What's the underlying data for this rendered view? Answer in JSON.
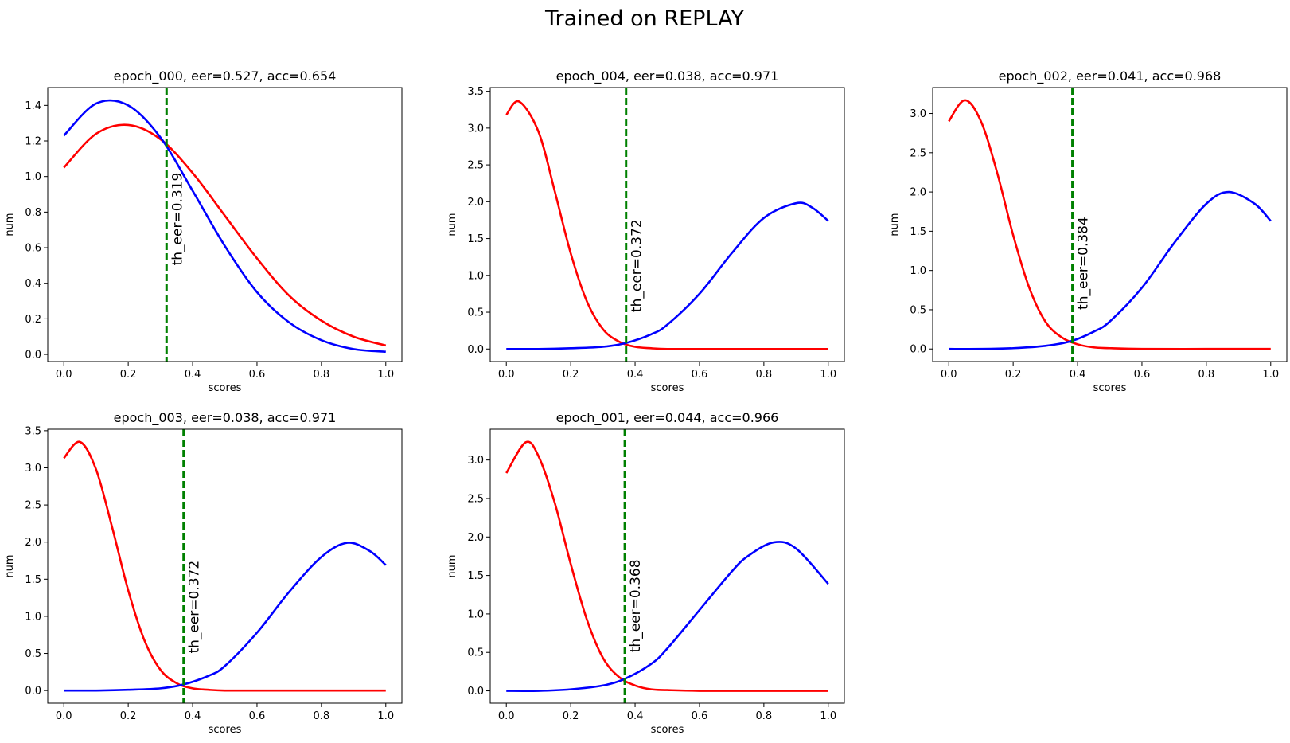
{
  "figure": {
    "suptitle": "Trained on REPLAY"
  },
  "colors": {
    "red_series": "#ff0000",
    "blue_series": "#0000ff",
    "threshold_line": "#008000",
    "axes": "#000000",
    "background": "#ffffff"
  },
  "chart_data": [
    {
      "type": "line",
      "title": "epoch_000, eer=0.527, acc=0.654",
      "xlabel": "scores",
      "ylabel": "num",
      "xlim": [
        -0.05,
        1.05
      ],
      "ylim": [
        -0.04,
        1.5
      ],
      "xticks": [
        "0.0",
        "0.2",
        "0.4",
        "0.6",
        "0.8",
        "1.0"
      ],
      "yticks": [
        "0.0",
        "0.2",
        "0.4",
        "0.6",
        "0.8",
        "1.0",
        "1.2",
        "1.4"
      ],
      "grid": false,
      "legend": "none",
      "threshold": {
        "x": 0.319,
        "label": "th_eer=0.319"
      },
      "series": [
        {
          "color": "red",
          "x": [
            0,
            0.1,
            0.2,
            0.3,
            0.4,
            0.5,
            0.6,
            0.7,
            0.8,
            0.9,
            1.0
          ],
          "values": [
            1.05,
            1.24,
            1.29,
            1.21,
            1.02,
            0.78,
            0.54,
            0.33,
            0.19,
            0.1,
            0.05
          ]
        },
        {
          "color": "blue",
          "x": [
            0,
            0.1,
            0.2,
            0.3,
            0.4,
            0.5,
            0.6,
            0.7,
            0.8,
            0.9,
            1.0
          ],
          "values": [
            1.23,
            1.41,
            1.4,
            1.22,
            0.92,
            0.61,
            0.35,
            0.18,
            0.08,
            0.03,
            0.015
          ]
        }
      ]
    },
    {
      "type": "line",
      "title": "epoch_004, eer=0.038, acc=0.971",
      "xlabel": "scores",
      "ylabel": "num",
      "xlim": [
        -0.05,
        1.05
      ],
      "ylim": [
        -0.17,
        3.55
      ],
      "xticks": [
        "0.0",
        "0.2",
        "0.4",
        "0.6",
        "0.8",
        "1.0"
      ],
      "yticks": [
        "0.0",
        "0.5",
        "1.0",
        "1.5",
        "2.0",
        "2.5",
        "3.0",
        "3.5"
      ],
      "grid": false,
      "legend": "none",
      "threshold": {
        "x": 0.372,
        "label": "th_eer=0.372"
      },
      "series": [
        {
          "color": "red",
          "x": [
            0,
            0.04,
            0.1,
            0.15,
            0.2,
            0.25,
            0.3,
            0.35,
            0.4,
            0.45,
            0.5,
            0.6,
            0.8,
            1.0
          ],
          "values": [
            3.18,
            3.36,
            2.95,
            2.15,
            1.3,
            0.65,
            0.27,
            0.1,
            0.03,
            0.01,
            0.0,
            0.0,
            0.0,
            0.0
          ]
        },
        {
          "color": "blue",
          "x": [
            0,
            0.1,
            0.2,
            0.3,
            0.37,
            0.45,
            0.5,
            0.6,
            0.7,
            0.8,
            0.9,
            0.95,
            1.0
          ],
          "values": [
            0.0,
            0.0,
            0.01,
            0.03,
            0.08,
            0.2,
            0.33,
            0.75,
            1.3,
            1.78,
            1.98,
            1.92,
            1.74
          ]
        }
      ]
    },
    {
      "type": "line",
      "title": "epoch_002, eer=0.041, acc=0.968",
      "xlabel": "scores",
      "ylabel": "num",
      "xlim": [
        -0.05,
        1.05
      ],
      "ylim": [
        -0.16,
        3.33
      ],
      "xticks": [
        "0.0",
        "0.2",
        "0.4",
        "0.6",
        "0.8",
        "1.0"
      ],
      "yticks": [
        "0.0",
        "0.5",
        "1.0",
        "1.5",
        "2.0",
        "2.5",
        "3.0"
      ],
      "grid": false,
      "legend": "none",
      "threshold": {
        "x": 0.384,
        "label": "th_eer=0.384"
      },
      "series": [
        {
          "color": "red",
          "x": [
            0,
            0.05,
            0.1,
            0.15,
            0.2,
            0.25,
            0.3,
            0.35,
            0.4,
            0.45,
            0.5,
            0.6,
            0.8,
            1.0
          ],
          "values": [
            2.9,
            3.17,
            2.9,
            2.25,
            1.45,
            0.78,
            0.35,
            0.15,
            0.06,
            0.02,
            0.01,
            0.0,
            0.0,
            0.0
          ]
        },
        {
          "color": "blue",
          "x": [
            0,
            0.1,
            0.2,
            0.3,
            0.38,
            0.45,
            0.5,
            0.6,
            0.7,
            0.8,
            0.87,
            0.95,
            1.0
          ],
          "values": [
            0.0,
            0.0,
            0.01,
            0.04,
            0.1,
            0.22,
            0.35,
            0.78,
            1.35,
            1.85,
            2.0,
            1.85,
            1.63
          ]
        }
      ]
    },
    {
      "type": "line",
      "title": "epoch_003, eer=0.038, acc=0.971",
      "xlabel": "scores",
      "ylabel": "num",
      "xlim": [
        -0.05,
        1.05
      ],
      "ylim": [
        -0.17,
        3.52
      ],
      "xticks": [
        "0.0",
        "0.2",
        "0.4",
        "0.6",
        "0.8",
        "1.0"
      ],
      "yticks": [
        "0.0",
        "0.5",
        "1.0",
        "1.5",
        "2.0",
        "2.5",
        "3.0",
        "3.5"
      ],
      "grid": false,
      "legend": "none",
      "threshold": {
        "x": 0.372,
        "label": "th_eer=0.372"
      },
      "series": [
        {
          "color": "red",
          "x": [
            0,
            0.05,
            0.1,
            0.15,
            0.2,
            0.25,
            0.3,
            0.35,
            0.4,
            0.45,
            0.5,
            0.6,
            0.8,
            1.0
          ],
          "values": [
            3.13,
            3.35,
            2.98,
            2.2,
            1.35,
            0.68,
            0.28,
            0.1,
            0.03,
            0.01,
            0.0,
            0.0,
            0.0,
            0.0
          ]
        },
        {
          "color": "blue",
          "x": [
            0,
            0.1,
            0.2,
            0.3,
            0.37,
            0.45,
            0.5,
            0.6,
            0.7,
            0.8,
            0.88,
            0.95,
            1.0
          ],
          "values": [
            0.0,
            0.0,
            0.01,
            0.03,
            0.08,
            0.2,
            0.33,
            0.78,
            1.33,
            1.8,
            1.99,
            1.88,
            1.69
          ]
        }
      ]
    },
    {
      "type": "line",
      "title": "epoch_001, eer=0.044, acc=0.966",
      "xlabel": "scores",
      "ylabel": "num",
      "xlim": [
        -0.05,
        1.05
      ],
      "ylim": [
        -0.16,
        3.4
      ],
      "xticks": [
        "0.0",
        "0.2",
        "0.4",
        "0.6",
        "0.8",
        "1.0"
      ],
      "yticks": [
        "0.0",
        "0.5",
        "1.0",
        "1.5",
        "2.0",
        "2.5",
        "3.0"
      ],
      "grid": false,
      "legend": "none",
      "threshold": {
        "x": 0.368,
        "label": "th_eer=0.368"
      },
      "series": [
        {
          "color": "red",
          "x": [
            0,
            0.06,
            0.1,
            0.15,
            0.2,
            0.25,
            0.3,
            0.35,
            0.4,
            0.45,
            0.5,
            0.6,
            0.8,
            1.0
          ],
          "values": [
            2.83,
            3.23,
            3.05,
            2.45,
            1.65,
            0.93,
            0.43,
            0.18,
            0.07,
            0.02,
            0.01,
            0.0,
            0.0,
            0.0
          ]
        },
        {
          "color": "blue",
          "x": [
            0,
            0.1,
            0.2,
            0.3,
            0.37,
            0.45,
            0.5,
            0.6,
            0.7,
            0.75,
            0.83,
            0.9,
            1.0
          ],
          "values": [
            0.0,
            0.0,
            0.02,
            0.07,
            0.16,
            0.35,
            0.55,
            1.05,
            1.55,
            1.75,
            1.93,
            1.85,
            1.39
          ]
        }
      ]
    }
  ]
}
